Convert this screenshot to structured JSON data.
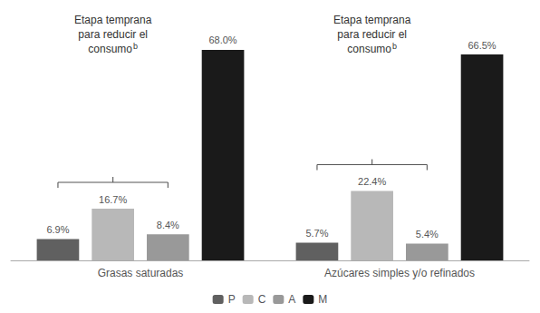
{
  "chart_data": {
    "type": "bar",
    "categories": [
      "Grasas saturadas",
      "Azúcares simples y/o refinados"
    ],
    "series": [
      {
        "name": "P",
        "color": "#606060",
        "values": [
          6.9,
          5.7
        ],
        "value_labels": [
          "6.9%",
          "5.7%"
        ]
      },
      {
        "name": "C",
        "color": "#b8b8b8",
        "values": [
          16.7,
          22.4
        ],
        "value_labels": [
          "16.7%",
          "22.4%"
        ]
      },
      {
        "name": "A",
        "color": "#999999",
        "values": [
          8.4,
          5.4
        ],
        "value_labels": [
          "8.4%",
          "5.4%"
        ]
      },
      {
        "name": "M",
        "color": "#1a1a1a",
        "values": [
          68.0,
          66.5
        ],
        "value_labels": [
          "68.0%",
          "66.5%"
        ]
      }
    ],
    "ylim": [
      0,
      80
    ],
    "data_labels": true,
    "tick_labels": "x",
    "grid": false,
    "legend": "bottom",
    "annotations": [
      {
        "category": "Grasas saturadas",
        "lines": [
          "Etapa temprana",
          "para reducir el",
          "consumo"
        ],
        "superscript": "b",
        "bracket": [
          "P",
          "C",
          "A"
        ]
      },
      {
        "category": "Azúcares simples y/o refinados",
        "lines": [
          "Etapa temprana",
          "para reducir el",
          "consumo"
        ],
        "superscript": "b",
        "bracket": [
          "P",
          "C",
          "A"
        ]
      }
    ]
  }
}
